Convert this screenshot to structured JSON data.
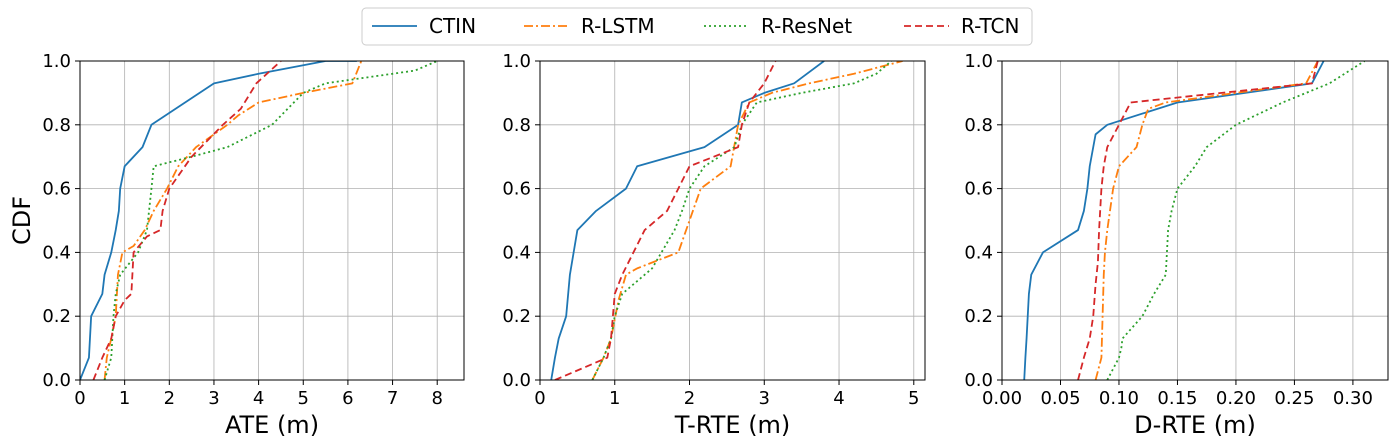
{
  "legend": {
    "entries": [
      {
        "name": "CTIN",
        "color": "#1f77b4",
        "dash": "solid"
      },
      {
        "name": "R-LSTM",
        "color": "#ff7f0e",
        "dash": "dashdot"
      },
      {
        "name": "R-ResNet",
        "color": "#2ca02c",
        "dash": "dotted"
      },
      {
        "name": "R-TCN",
        "color": "#d62728",
        "dash": "dashed"
      }
    ],
    "placement": "top-center"
  },
  "chart_data": [
    {
      "type": "line",
      "xlabel": "ATE (m)",
      "ylabel": "CDF",
      "xlim": [
        0,
        8.6
      ],
      "ylim": [
        0,
        1.0
      ],
      "xticks": [
        "0",
        "1",
        "2",
        "3",
        "4",
        "5",
        "6",
        "7",
        "8"
      ],
      "yticks": [
        "0.0",
        "0.2",
        "0.4",
        "0.6",
        "0.8",
        "1.0"
      ],
      "grid": true,
      "series": [
        {
          "name": "CTIN",
          "x": [
            0.0,
            0.2,
            0.25,
            0.5,
            0.55,
            0.7,
            0.8,
            0.87,
            0.9,
            1.0,
            1.4,
            1.6,
            3.0,
            4.0,
            5.5,
            6.2
          ],
          "y": [
            0.0,
            0.07,
            0.2,
            0.27,
            0.33,
            0.4,
            0.47,
            0.53,
            0.6,
            0.67,
            0.73,
            0.8,
            0.93,
            0.96,
            1.0,
            1.0
          ]
        },
        {
          "name": "R-LSTM",
          "x": [
            0.55,
            0.6,
            0.7,
            0.8,
            0.85,
            0.95,
            1.2,
            1.45,
            1.65,
            1.95,
            2.2,
            2.6,
            3.3,
            3.55,
            4.0,
            5.0,
            6.1,
            6.3
          ],
          "y": [
            0.0,
            0.07,
            0.13,
            0.2,
            0.33,
            0.4,
            0.42,
            0.47,
            0.53,
            0.6,
            0.67,
            0.73,
            0.8,
            0.83,
            0.87,
            0.9,
            0.93,
            1.0
          ]
        },
        {
          "name": "R-ResNet",
          "x": [
            0.55,
            0.7,
            0.75,
            0.8,
            0.9,
            1.3,
            1.5,
            1.6,
            1.65,
            2.5,
            3.3,
            4.3,
            5.0,
            5.5,
            6.5,
            7.5,
            8.0
          ],
          "y": [
            0.0,
            0.07,
            0.2,
            0.27,
            0.33,
            0.4,
            0.47,
            0.6,
            0.67,
            0.7,
            0.73,
            0.8,
            0.9,
            0.93,
            0.95,
            0.97,
            1.0
          ]
        },
        {
          "name": "R-TCN",
          "x": [
            0.3,
            0.5,
            0.7,
            0.8,
            1.0,
            1.15,
            1.2,
            1.5,
            1.8,
            1.85,
            2.0,
            2.5,
            3.2,
            3.6,
            3.95,
            4.5
          ],
          "y": [
            0.0,
            0.07,
            0.13,
            0.2,
            0.25,
            0.27,
            0.4,
            0.45,
            0.47,
            0.53,
            0.6,
            0.7,
            0.8,
            0.85,
            0.93,
            1.0
          ]
        }
      ]
    },
    {
      "type": "line",
      "xlabel": "T-RTE (m)",
      "ylabel": "",
      "xlim": [
        0,
        5.15
      ],
      "ylim": [
        0,
        1.0
      ],
      "xticks": [
        "0",
        "1",
        "2",
        "3",
        "4",
        "5"
      ],
      "yticks": [
        "0.0",
        "0.2",
        "0.4",
        "0.6",
        "0.8",
        "1.0"
      ],
      "grid": true,
      "series": [
        {
          "name": "CTIN",
          "x": [
            0.15,
            0.2,
            0.25,
            0.35,
            0.4,
            0.45,
            0.5,
            0.75,
            1.15,
            1.3,
            2.2,
            2.65,
            2.7,
            3.0,
            3.4,
            3.8
          ],
          "y": [
            0.0,
            0.07,
            0.13,
            0.2,
            0.33,
            0.4,
            0.47,
            0.53,
            0.6,
            0.67,
            0.73,
            0.8,
            0.87,
            0.9,
            0.93,
            1.0
          ]
        },
        {
          "name": "R-LSTM",
          "x": [
            0.7,
            0.85,
            0.95,
            1.05,
            1.15,
            1.3,
            1.85,
            2.15,
            2.55,
            2.65,
            2.8,
            3.1,
            3.6,
            4.2,
            4.85
          ],
          "y": [
            0.0,
            0.07,
            0.13,
            0.25,
            0.33,
            0.35,
            0.4,
            0.6,
            0.67,
            0.8,
            0.87,
            0.9,
            0.93,
            0.96,
            1.0
          ]
        },
        {
          "name": "R-ResNet",
          "x": [
            0.7,
            0.85,
            0.95,
            1.0,
            1.1,
            1.5,
            1.8,
            1.9,
            2.0,
            2.2,
            2.6,
            2.7,
            2.9,
            3.5,
            4.2,
            4.5,
            4.7
          ],
          "y": [
            0.0,
            0.07,
            0.13,
            0.2,
            0.27,
            0.35,
            0.47,
            0.53,
            0.6,
            0.67,
            0.73,
            0.8,
            0.87,
            0.9,
            0.93,
            0.96,
            1.0
          ]
        },
        {
          "name": "R-TCN",
          "x": [
            0.2,
            0.9,
            0.95,
            1.0,
            1.1,
            1.25,
            1.4,
            1.7,
            1.85,
            2.0,
            2.65,
            2.7,
            2.8,
            3.0,
            3.15
          ],
          "y": [
            0.0,
            0.07,
            0.13,
            0.27,
            0.33,
            0.4,
            0.47,
            0.53,
            0.6,
            0.67,
            0.73,
            0.8,
            0.87,
            0.93,
            1.0
          ]
        }
      ]
    },
    {
      "type": "line",
      "xlabel": "D-RTE (m)",
      "ylabel": "",
      "xlim": [
        0,
        0.33
      ],
      "ylim": [
        0,
        1.0
      ],
      "xticks": [
        "0.00",
        "0.05",
        "0.10",
        "0.15",
        "0.20",
        "0.25",
        "0.30"
      ],
      "yticks": [
        "0.0",
        "0.2",
        "0.4",
        "0.6",
        "0.8",
        "1.0"
      ],
      "grid": true,
      "series": [
        {
          "name": "CTIN",
          "x": [
            0.019,
            0.02,
            0.021,
            0.022,
            0.023,
            0.025,
            0.035,
            0.065,
            0.07,
            0.073,
            0.075,
            0.078,
            0.08,
            0.09,
            0.15,
            0.265,
            0.275
          ],
          "y": [
            0.0,
            0.07,
            0.13,
            0.2,
            0.27,
            0.33,
            0.4,
            0.47,
            0.53,
            0.6,
            0.67,
            0.73,
            0.77,
            0.8,
            0.87,
            0.93,
            1.0
          ]
        },
        {
          "name": "R-LSTM",
          "x": [
            0.08,
            0.085,
            0.086,
            0.087,
            0.088,
            0.09,
            0.095,
            0.1,
            0.115,
            0.12,
            0.125,
            0.14,
            0.2,
            0.26,
            0.27
          ],
          "y": [
            0.0,
            0.07,
            0.2,
            0.33,
            0.4,
            0.47,
            0.6,
            0.67,
            0.73,
            0.8,
            0.85,
            0.87,
            0.9,
            0.93,
            1.0
          ]
        },
        {
          "name": "R-ResNet",
          "x": [
            0.09,
            0.1,
            0.102,
            0.103,
            0.12,
            0.13,
            0.14,
            0.142,
            0.145,
            0.15,
            0.165,
            0.175,
            0.2,
            0.24,
            0.28,
            0.31
          ],
          "y": [
            0.0,
            0.07,
            0.1,
            0.13,
            0.2,
            0.27,
            0.33,
            0.47,
            0.53,
            0.6,
            0.67,
            0.73,
            0.8,
            0.87,
            0.93,
            1.0
          ]
        },
        {
          "name": "R-TCN",
          "x": [
            0.065,
            0.07,
            0.075,
            0.078,
            0.08,
            0.082,
            0.083,
            0.085,
            0.087,
            0.09,
            0.1,
            0.11,
            0.265,
            0.27
          ],
          "y": [
            0.0,
            0.07,
            0.13,
            0.2,
            0.3,
            0.37,
            0.47,
            0.6,
            0.67,
            0.73,
            0.8,
            0.87,
            0.93,
            1.0
          ]
        }
      ]
    }
  ]
}
